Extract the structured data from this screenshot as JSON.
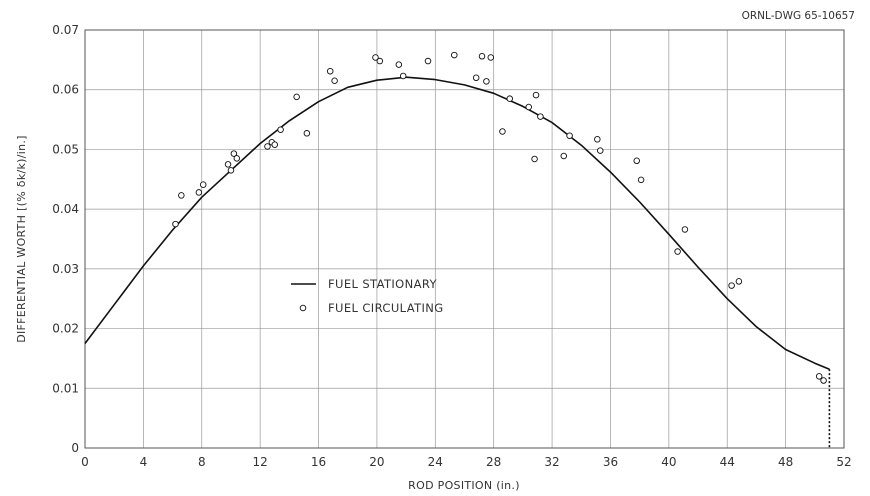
{
  "drawing_number": "ORNL-DWG 65-10657",
  "chart_data": {
    "type": "scatter",
    "title": "",
    "xlabel": "ROD POSITION (in.)",
    "ylabel": "DIFFERENTIAL WORTH [(% δk/k)/in.]",
    "xlim": [
      0,
      52
    ],
    "ylim": [
      0,
      0.07
    ],
    "xticks": [
      0,
      4,
      8,
      12,
      16,
      20,
      24,
      28,
      32,
      36,
      40,
      44,
      48,
      52
    ],
    "yticks": [
      0,
      0.01,
      0.02,
      0.03,
      0.04,
      0.05,
      0.06,
      0.07
    ],
    "xtick_labels": [
      "0",
      "4",
      "8",
      "12",
      "16",
      "20",
      "24",
      "28",
      "32",
      "36",
      "40",
      "44",
      "48",
      "52"
    ],
    "ytick_labels": [
      "0",
      "0.01",
      "0.02",
      "0.03",
      "0.04",
      "0.05",
      "0.06",
      "0.07"
    ],
    "grid": true,
    "legend_position": "center-left",
    "series": [
      {
        "name": "FUEL STATIONARY",
        "style": "line",
        "color": "#111111",
        "x": [
          0,
          2,
          4,
          6,
          8,
          10,
          12,
          14,
          16,
          18,
          20,
          22,
          24,
          26,
          28,
          30,
          32,
          34,
          36,
          38,
          40,
          42,
          44,
          46,
          48,
          50,
          51
        ],
        "y": [
          0.0175,
          0.024,
          0.0305,
          0.0365,
          0.042,
          0.0465,
          0.051,
          0.0548,
          0.058,
          0.0604,
          0.0616,
          0.0621,
          0.0617,
          0.0608,
          0.0594,
          0.0572,
          0.0545,
          0.0507,
          0.0462,
          0.0412,
          0.0358,
          0.0303,
          0.025,
          0.0203,
          0.0165,
          0.0142,
          0.0132
        ]
      },
      {
        "name": "FUEL CIRCULATING",
        "style": "markers",
        "color": "#111111",
        "x": [
          6.2,
          6.6,
          7.8,
          8.1,
          9.8,
          10.0,
          10.2,
          10.4,
          12.5,
          12.8,
          13.0,
          13.4,
          14.5,
          15.2,
          16.8,
          17.1,
          19.9,
          20.2,
          21.5,
          21.8,
          23.5,
          25.3,
          26.8,
          27.2,
          27.5,
          27.8,
          28.6,
          29.1,
          30.4,
          30.8,
          30.9,
          31.2,
          32.8,
          33.2,
          35.1,
          35.3,
          37.8,
          38.1,
          40.6,
          41.1,
          44.3,
          44.8,
          50.3,
          50.6
        ],
        "y": [
          0.0375,
          0.0423,
          0.0428,
          0.0441,
          0.0475,
          0.0465,
          0.0493,
          0.0485,
          0.0505,
          0.0512,
          0.0508,
          0.0533,
          0.0588,
          0.0527,
          0.0631,
          0.0615,
          0.0654,
          0.0648,
          0.0642,
          0.0623,
          0.0648,
          0.0658,
          0.062,
          0.0656,
          0.0614,
          0.0654,
          0.053,
          0.0585,
          0.0571,
          0.0484,
          0.0591,
          0.0555,
          0.0489,
          0.0523,
          0.0517,
          0.0498,
          0.0481,
          0.0449,
          0.0329,
          0.0366,
          0.0272,
          0.0279,
          0.012,
          0.0113
        ]
      }
    ],
    "dotted_drop": {
      "x": 51,
      "y_from": 0.0132,
      "y_to": 0
    }
  }
}
